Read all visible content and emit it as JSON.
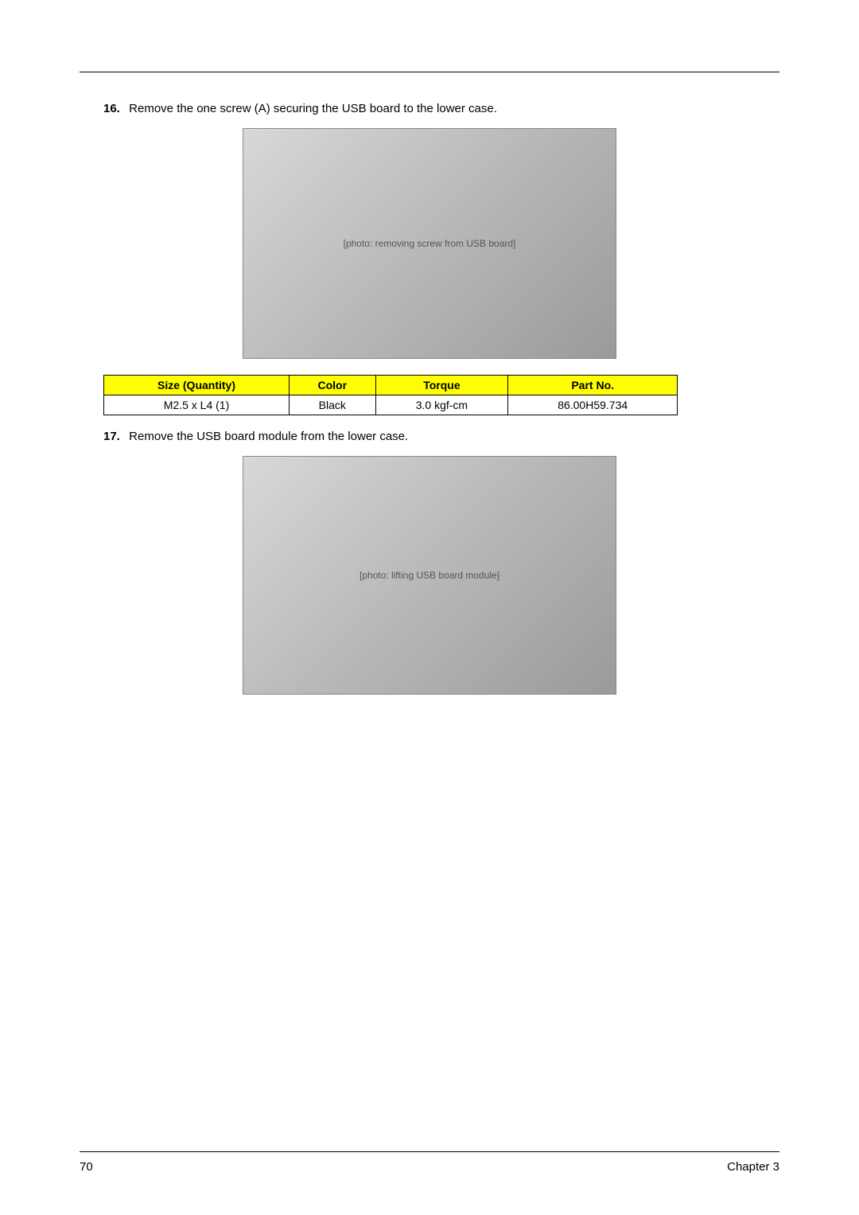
{
  "steps": [
    {
      "number": "16.",
      "text": "Remove the one screw (A) securing the USB board to the lower case.",
      "image_desc": "[photo: removing screw from USB board]"
    },
    {
      "number": "17.",
      "text": "Remove the USB board module from the lower case.",
      "image_desc": "[photo: lifting USB board module]"
    }
  ],
  "table": {
    "headers": [
      "Size (Quantity)",
      "Color",
      "Torque",
      "Part No."
    ],
    "row": [
      "M2.5 x L4 (1)",
      "Black",
      "3.0 kgf-cm",
      "86.00H59.734"
    ],
    "header_bg": "#ffff00",
    "border_color": "#000000",
    "font_size": 14
  },
  "footer": {
    "page_number": "70",
    "chapter": "Chapter 3"
  },
  "colors": {
    "background": "#ffffff",
    "text": "#000000",
    "rule": "#000000"
  }
}
